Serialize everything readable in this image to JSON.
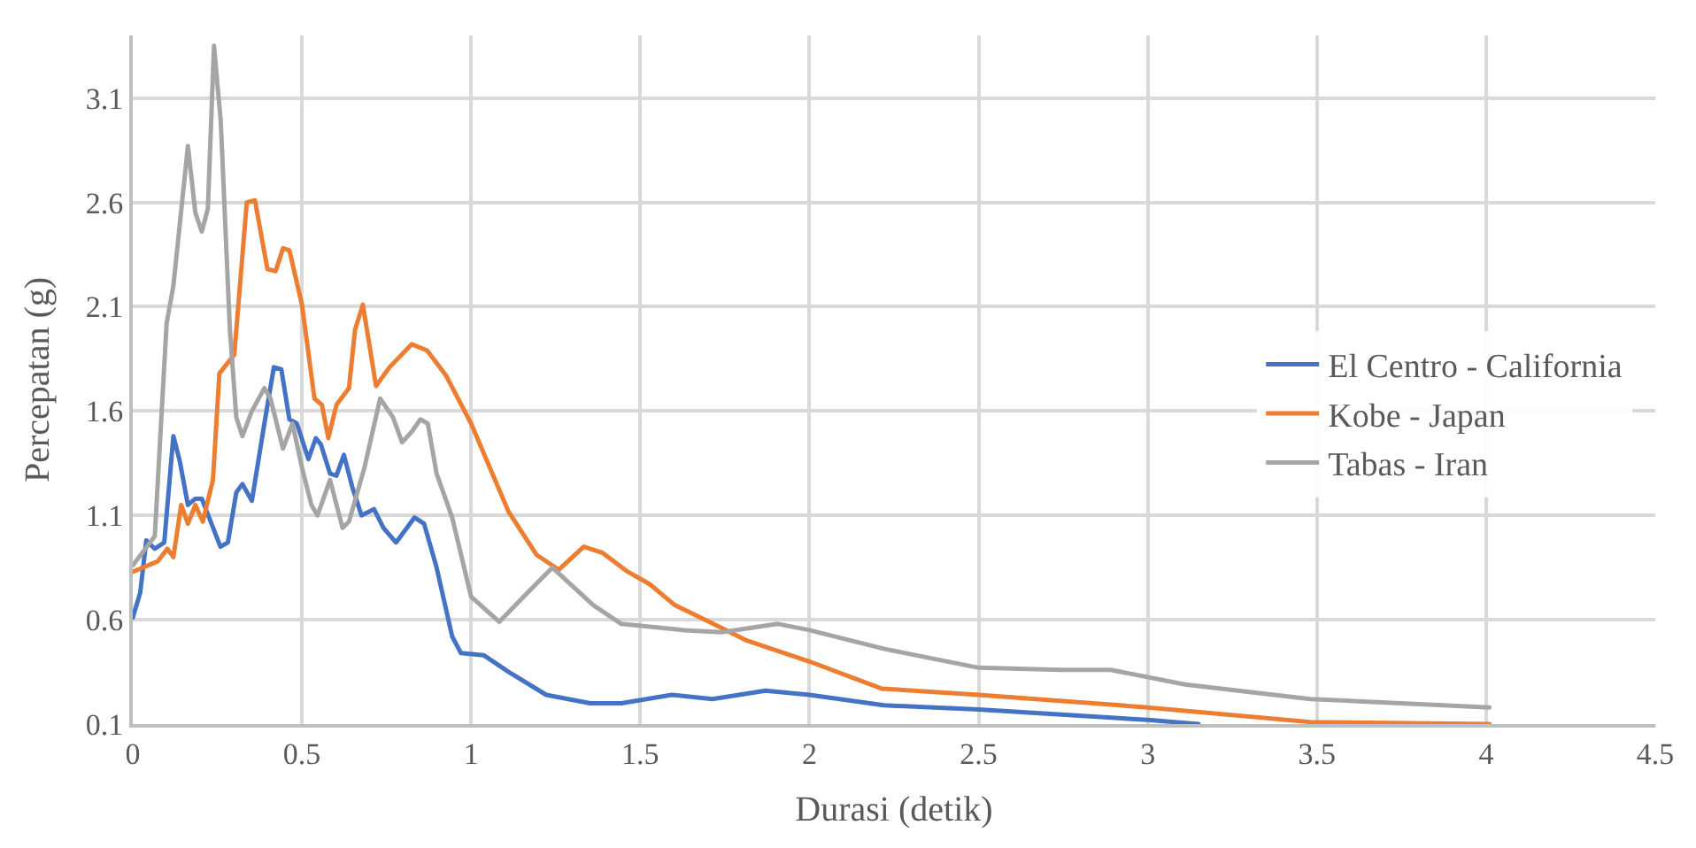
{
  "chart_data": {
    "type": "line",
    "xlabel": "Durasi (detik)",
    "ylabel": "Percepatan (g)",
    "xlim": [
      0,
      4.5
    ],
    "xticks": [
      0,
      0.5,
      1,
      1.5,
      2,
      2.5,
      3,
      3.5,
      4,
      4.5
    ],
    "ylim": [
      0.1,
      3.4
    ],
    "yticks": [
      0.1,
      0.6,
      1.1,
      1.6,
      2.1,
      2.6,
      3.1
    ],
    "grid": true,
    "legend": "right",
    "marker": "none",
    "line_style": "solid",
    "series": [
      {
        "name": "El Centro - California",
        "color": "#4472c4",
        "x": [
          0,
          0.022,
          0.04,
          0.065,
          0.093,
          0.12,
          0.139,
          0.163,
          0.185,
          0.204,
          0.259,
          0.281,
          0.306,
          0.324,
          0.352,
          0.389,
          0.417,
          0.439,
          0.463,
          0.485,
          0.519,
          0.541,
          0.556,
          0.583,
          0.602,
          0.624,
          0.648,
          0.676,
          0.713,
          0.741,
          0.778,
          0.833,
          0.861,
          0.898,
          0.944,
          0.97,
          1.037,
          1.111,
          1.222,
          1.352,
          1.444,
          1.593,
          1.713,
          1.87,
          2.0,
          2.22,
          2.5,
          3.0,
          3.15
        ],
        "values": [
          0.61,
          0.73,
          0.98,
          0.94,
          0.97,
          1.48,
          1.36,
          1.15,
          1.18,
          1.18,
          0.95,
          0.97,
          1.21,
          1.25,
          1.17,
          1.54,
          1.81,
          1.8,
          1.56,
          1.54,
          1.37,
          1.47,
          1.44,
          1.3,
          1.29,
          1.39,
          1.24,
          1.1,
          1.13,
          1.04,
          0.97,
          1.09,
          1.06,
          0.85,
          0.52,
          0.44,
          0.43,
          0.35,
          0.24,
          0.2,
          0.2,
          0.24,
          0.22,
          0.26,
          0.24,
          0.19,
          0.17,
          0.12,
          0.1
        ]
      },
      {
        "name": "Kobe - Japan",
        "color": "#ed7d31",
        "x": [
          0,
          0.074,
          0.102,
          0.12,
          0.143,
          0.163,
          0.185,
          0.207,
          0.237,
          0.256,
          0.3,
          0.337,
          0.361,
          0.398,
          0.422,
          0.444,
          0.463,
          0.5,
          0.537,
          0.559,
          0.578,
          0.602,
          0.639,
          0.657,
          0.68,
          0.719,
          0.759,
          0.824,
          0.87,
          0.926,
          1.0,
          1.11,
          1.194,
          1.259,
          1.333,
          1.389,
          1.463,
          1.528,
          1.602,
          1.704,
          1.815,
          2.0,
          2.213,
          2.5,
          3.0,
          3.48,
          4.01
        ],
        "values": [
          0.83,
          0.88,
          0.94,
          0.9,
          1.15,
          1.06,
          1.15,
          1.07,
          1.27,
          1.78,
          1.87,
          2.6,
          2.61,
          2.28,
          2.27,
          2.38,
          2.37,
          2.11,
          1.66,
          1.63,
          1.47,
          1.63,
          1.71,
          1.99,
          2.11,
          1.72,
          1.81,
          1.92,
          1.89,
          1.77,
          1.54,
          1.12,
          0.91,
          0.84,
          0.95,
          0.92,
          0.83,
          0.77,
          0.67,
          0.59,
          0.5,
          0.4,
          0.27,
          0.24,
          0.18,
          0.11,
          0.1
        ]
      },
      {
        "name": "Tabas - Iran",
        "color": "#a5a5a5",
        "x": [
          0,
          0.065,
          0.1,
          0.12,
          0.163,
          0.185,
          0.204,
          0.222,
          0.24,
          0.26,
          0.287,
          0.306,
          0.324,
          0.352,
          0.389,
          0.407,
          0.444,
          0.472,
          0.5,
          0.528,
          0.546,
          0.583,
          0.62,
          0.639,
          0.685,
          0.731,
          0.769,
          0.796,
          0.824,
          0.85,
          0.872,
          0.898,
          0.944,
          1.0,
          1.083,
          1.167,
          1.24,
          1.361,
          1.444,
          1.63,
          1.74,
          1.907,
          2.0,
          2.222,
          2.5,
          2.74,
          2.89,
          3.11,
          3.48,
          4.01
        ],
        "values": [
          0.86,
          1.0,
          2.02,
          2.2,
          2.87,
          2.55,
          2.46,
          2.57,
          3.35,
          2.99,
          1.99,
          1.57,
          1.48,
          1.6,
          1.71,
          1.66,
          1.42,
          1.54,
          1.33,
          1.15,
          1.1,
          1.27,
          1.04,
          1.07,
          1.33,
          1.66,
          1.57,
          1.45,
          1.5,
          1.56,
          1.54,
          1.3,
          1.09,
          0.71,
          0.59,
          0.73,
          0.85,
          0.67,
          0.58,
          0.55,
          0.54,
          0.58,
          0.55,
          0.46,
          0.37,
          0.36,
          0.36,
          0.29,
          0.22,
          0.18
        ]
      }
    ]
  }
}
